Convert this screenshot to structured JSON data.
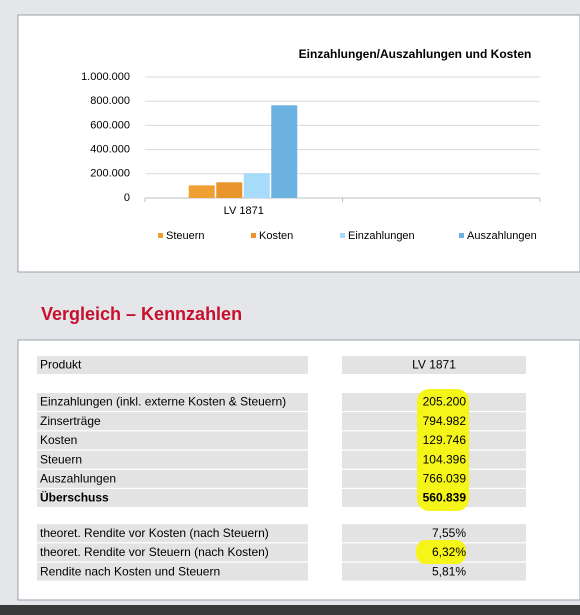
{
  "chart_data": {
    "type": "bar",
    "title": "Einzahlungen/Auszahlungen und Kosten",
    "categories": [
      "LV 1871",
      null
    ],
    "series": [
      {
        "name": "Steuern",
        "color": "#f0a033",
        "values": [
          104396,
          null
        ]
      },
      {
        "name": "Kosten",
        "color": "#e8952c",
        "values": [
          129746,
          null
        ]
      },
      {
        "name": "Einzahlungen",
        "color": "#a6dcf9",
        "values": [
          205200,
          null
        ]
      },
      {
        "name": "Auszahlungen",
        "color": "#6cb2e0",
        "values": [
          766039,
          null
        ]
      }
    ],
    "ylim": [
      0,
      1000000
    ],
    "yticks": [
      0,
      {
        "value": 200000,
        "label": "200.000"
      },
      {
        "value": 400000,
        "label": "400.000"
      },
      {
        "value": 600000,
        "label": "600.000"
      },
      {
        "value": 800000,
        "label": "800.000"
      },
      {
        "value": 1000000,
        "label": "1.000.000"
      }
    ],
    "grid": true,
    "legend": "bottom"
  },
  "section": {
    "title": "Vergleich – Kennzahlen"
  },
  "table": {
    "header": [
      "Produkt",
      "LV 1871"
    ],
    "groups": [
      [
        {
          "label": "Einzahlungen (inkl. externe Kosten & Steuern)",
          "value": "205.200"
        },
        {
          "label": "Zinserträge",
          "value": "794.982"
        },
        {
          "label": "Kosten",
          "value": "129.746"
        },
        {
          "label": "Steuern",
          "value": "104.396"
        },
        {
          "label": "Auszahlungen",
          "value": "766.039"
        },
        {
          "label": "Überschuss",
          "value": "560.839",
          "bold": true
        }
      ],
      [
        {
          "label": "theoret. Rendite vor Kosten (nach Steuern)",
          "value": "7,55%"
        },
        {
          "label": "theoret. Rendite vor Steuern (nach Kosten)",
          "value": "6,32%"
        },
        {
          "label": "Rendite nach Kosten und Steuern",
          "value": "5,81%"
        }
      ]
    ]
  }
}
